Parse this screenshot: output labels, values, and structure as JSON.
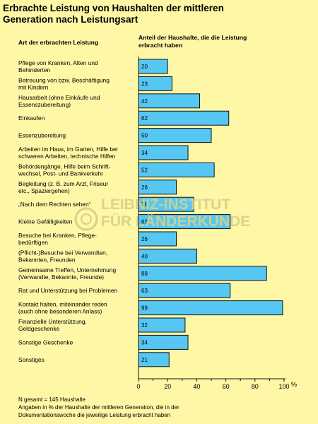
{
  "title_line1": "Erbrachte Leistung von Haushalten der mittleren",
  "title_line2": "Generation nach Leistungsart",
  "col_left": "Art der erbrachten Leistung",
  "col_right_line1": "Anteil der Haushalte, die die Leistung",
  "col_right_line2": "erbracht haben",
  "watermark_line1": "LEIBNIZ-INSTITUT",
  "watermark_line2": "FÜR LÄNDERKUNDE",
  "notes": [
    "N gesamt = 145 Haushalte",
    "Angaben in % der Haushalte der mittleren Generation, die in der",
    "Dokumentationswoche die jeweilige Leistung erbracht haben"
  ],
  "colors": {
    "background": "#fdf7a6",
    "bar": "#56c7f2",
    "bar_stroke": "#111111"
  },
  "chart_data": {
    "type": "bar",
    "orientation": "horizontal",
    "xlabel": "%",
    "xlim": [
      0,
      100
    ],
    "xticks": [
      0,
      20,
      40,
      60,
      80,
      100
    ],
    "grid": false,
    "categories": [
      [
        "Pflege von Kranken, Alten und",
        "Behinderten"
      ],
      [
        "Betreuung von bzw. Beschäftigung",
        "mit Kindern"
      ],
      [
        "Hausarbeit (ohne Einkäufe und",
        "Essenszubereitung)"
      ],
      [
        "Einkaufen"
      ],
      [
        "Essenzubereitung"
      ],
      [
        "Arbeiten im Haus, im Garten, Hilfe bei",
        "schweren Arbeiten, technische Hilfen"
      ],
      [
        "Behördengänge, Hilfe beim Schrift-",
        "wechsel, Post- und Bankverkehr"
      ],
      [
        "Begleitung (z. B. zum Arzt, Friseur",
        "etc., Spaziergehen)"
      ],
      [
        "„Nach dem Rechten sehen“"
      ],
      [
        "Kleine Gefälligkeiten"
      ],
      [
        "Besuche bei Kranken, Pflege-",
        "bedürftigen"
      ],
      [
        "(Pflicht-)Besuche bei Verwandten,",
        "Bekannten, Freunden"
      ],
      [
        "Gemeinsame Treffen, Unternehmung",
        "(Verwandte, Bekannte,  Freunde)"
      ],
      [
        "Rat und Unterstützung bei Problemen"
      ],
      [
        "Kontakt halten, miteinander reden",
        "(auch ohne besonderen Anlass)"
      ],
      [
        "Finanzielle Unterstützung,",
        "Geldgeschenke"
      ],
      [
        "Sonstige Geschenke"
      ],
      [
        "Sonstiges"
      ]
    ],
    "values": [
      20,
      23,
      42,
      62,
      50,
      34,
      52,
      26,
      38,
      63,
      26,
      40,
      88,
      63,
      99,
      32,
      34,
      21
    ]
  }
}
